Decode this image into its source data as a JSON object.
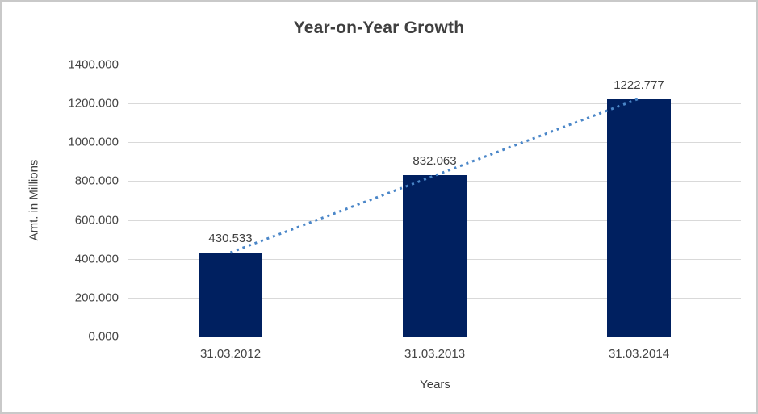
{
  "chart": {
    "title": "Year-on-Year Growth",
    "x_axis_title": "Years",
    "y_axis_title": "Amt. in Millions"
  },
  "chart_data": {
    "type": "bar",
    "title": "Year-on-Year Growth",
    "xlabel": "Years",
    "ylabel": "Amt. in Millions",
    "categories": [
      "31.03.2012",
      "31.03.2013",
      "31.03.2014"
    ],
    "values": [
      430.533,
      832.063,
      1222.777
    ],
    "data_labels": [
      "430.533",
      "832.063",
      "1222.777"
    ],
    "y_tick_labels": [
      "1400.000",
      "1200.000",
      "1000.000",
      "800.000",
      "600.000",
      "400.000",
      "200.000",
      "0.000"
    ],
    "ylim": [
      0,
      1400
    ],
    "y_tick_step": 200,
    "grid": true,
    "legend": "none",
    "trendline": {
      "type": "linear",
      "style": "dotted"
    },
    "colors": {
      "bar": "#002060",
      "trendline": "#4a86c8",
      "gridline": "#d9d9d9",
      "text": "#444444",
      "title_text": "#3f3f3f",
      "border": "#c9c9c9",
      "background": "#ffffff"
    }
  }
}
